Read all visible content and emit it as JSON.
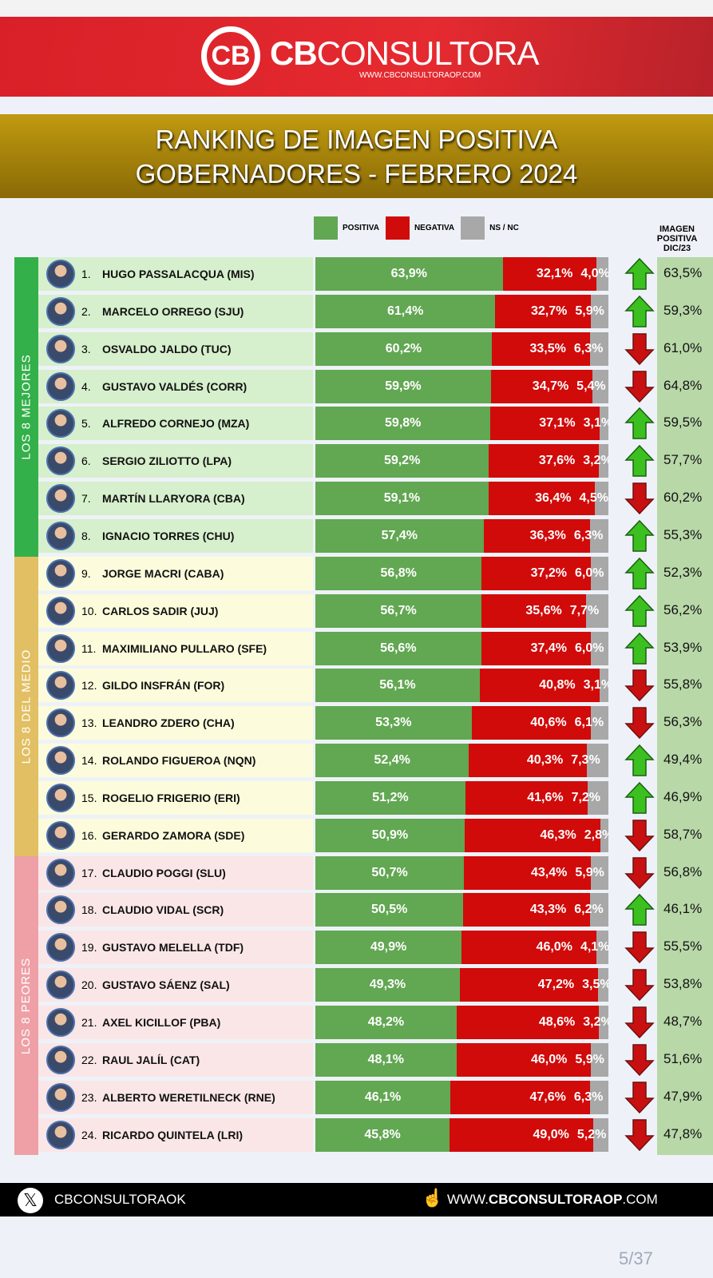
{
  "brand": {
    "logo_text": "CB",
    "name_bold": "CB",
    "name_rest": "CONSULTORA",
    "url": "WWW.CBCONSULTORAOP.COM"
  },
  "title": {
    "line1": "RANKING DE IMAGEN POSITIVA",
    "line2": "GOBERNADORES - FEBRERO 2024"
  },
  "legend": {
    "positive": "POSITIVA",
    "negative": "NEGATIVA",
    "ns": "NS / NC"
  },
  "dic_header": "IMAGEN POSITIVA DIC/23",
  "groups": {
    "top": "LOS 8 MEJORES",
    "middle": "LOS 8 DEL MEDIO",
    "bottom": "LOS 8 PEORES"
  },
  "colors": {
    "positive": "#62a752",
    "negative": "#d10a0a",
    "ns": "#a8a8a8",
    "up": "#3cc020",
    "down": "#c81010"
  },
  "chart_data": {
    "type": "bar",
    "stacked": true,
    "orientation": "horizontal",
    "title": "RANKING DE IMAGEN POSITIVA GOBERNADORES - FEBRERO 2024",
    "series_names": [
      "POSITIVA",
      "NEGATIVA",
      "NS / NC"
    ],
    "rows": [
      {
        "rank": "1.",
        "name": "HUGO PASSALACQUA (MIS)",
        "pos": "63,9%",
        "neg": "32,1%",
        "ns": "4,0%",
        "p": 63.9,
        "n": 32.1,
        "s": 4.0,
        "trend": "up",
        "dic": "63,5%"
      },
      {
        "rank": "2.",
        "name": "MARCELO ORREGO (SJU)",
        "pos": "61,4%",
        "neg": "32,7%",
        "ns": "5,9%",
        "p": 61.4,
        "n": 32.7,
        "s": 5.9,
        "trend": "up",
        "dic": "59,3%"
      },
      {
        "rank": "3.",
        "name": "OSVALDO JALDO (TUC)",
        "pos": "60,2%",
        "neg": "33,5%",
        "ns": "6,3%",
        "p": 60.2,
        "n": 33.5,
        "s": 6.3,
        "trend": "down",
        "dic": "61,0%"
      },
      {
        "rank": "4.",
        "name": "GUSTAVO VALDÉS (CORR)",
        "pos": "59,9%",
        "neg": "34,7%",
        "ns": "5,4%",
        "p": 59.9,
        "n": 34.7,
        "s": 5.4,
        "trend": "down",
        "dic": "64,8%"
      },
      {
        "rank": "5.",
        "name": "ALFREDO CORNEJO (MZA)",
        "pos": "59,8%",
        "neg": "37,1%",
        "ns": "3,1%",
        "p": 59.8,
        "n": 37.1,
        "s": 3.1,
        "trend": "up",
        "dic": "59,5%"
      },
      {
        "rank": "6.",
        "name": "SERGIO ZILIOTTO (LPA)",
        "pos": "59,2%",
        "neg": "37,6%",
        "ns": "3,2%",
        "p": 59.2,
        "n": 37.6,
        "s": 3.2,
        "trend": "up",
        "dic": "57,7%"
      },
      {
        "rank": "7.",
        "name": "MARTÍN LLARYORA (CBA)",
        "pos": "59,1%",
        "neg": "36,4%",
        "ns": "4,5%",
        "p": 59.1,
        "n": 36.4,
        "s": 4.5,
        "trend": "down",
        "dic": "60,2%"
      },
      {
        "rank": "8.",
        "name": "IGNACIO TORRES (CHU)",
        "pos": "57,4%",
        "neg": "36,3%",
        "ns": "6,3%",
        "p": 57.4,
        "n": 36.3,
        "s": 6.3,
        "trend": "up",
        "dic": "55,3%"
      },
      {
        "rank": "9.",
        "name": "JORGE MACRI (CABA)",
        "pos": "56,8%",
        "neg": "37,2%",
        "ns": "6,0%",
        "p": 56.8,
        "n": 37.2,
        "s": 6.0,
        "trend": "up",
        "dic": "52,3%"
      },
      {
        "rank": "10.",
        "name": "CARLOS SADIR (JUJ)",
        "pos": "56,7%",
        "neg": "35,6%",
        "ns": "7,7%",
        "p": 56.7,
        "n": 35.6,
        "s": 7.7,
        "trend": "up",
        "dic": "56,2%"
      },
      {
        "rank": "11.",
        "name": "MAXIMILIANO PULLARO (SFE)",
        "pos": "56,6%",
        "neg": "37,4%",
        "ns": "6,0%",
        "p": 56.6,
        "n": 37.4,
        "s": 6.0,
        "trend": "up",
        "dic": "53,9%"
      },
      {
        "rank": "12.",
        "name": "GILDO INSFRÁN (FOR)",
        "pos": "56,1%",
        "neg": "40,8%",
        "ns": "3,1%",
        "p": 56.1,
        "n": 40.8,
        "s": 3.1,
        "trend": "down",
        "dic": "55,8%"
      },
      {
        "rank": "13.",
        "name": "LEANDRO ZDERO (CHA)",
        "pos": "53,3%",
        "neg": "40,6%",
        "ns": "6,1%",
        "p": 53.3,
        "n": 40.6,
        "s": 6.1,
        "trend": "down",
        "dic": "56,3%"
      },
      {
        "rank": "14.",
        "name": "ROLANDO FIGUEROA (NQN)",
        "pos": "52,4%",
        "neg": "40,3%",
        "ns": "7,3%",
        "p": 52.4,
        "n": 40.3,
        "s": 7.3,
        "trend": "up",
        "dic": "49,4%"
      },
      {
        "rank": "15.",
        "name": "ROGELIO FRIGERIO (ERI)",
        "pos": "51,2%",
        "neg": "41,6%",
        "ns": "7,2%",
        "p": 51.2,
        "n": 41.6,
        "s": 7.2,
        "trend": "up",
        "dic": "46,9%"
      },
      {
        "rank": "16.",
        "name": "GERARDO ZAMORA (SDE)",
        "pos": "50,9%",
        "neg": "46,3%",
        "ns": "2,8%",
        "p": 50.9,
        "n": 46.3,
        "s": 2.8,
        "trend": "down",
        "dic": "58,7%"
      },
      {
        "rank": "17.",
        "name": "CLAUDIO POGGI (SLU)",
        "pos": "50,7%",
        "neg": "43,4%",
        "ns": "5,9%",
        "p": 50.7,
        "n": 43.4,
        "s": 5.9,
        "trend": "down",
        "dic": "56,8%"
      },
      {
        "rank": "18.",
        "name": "CLAUDIO VIDAL (SCR)",
        "pos": "50,5%",
        "neg": "43,3%",
        "ns": "6,2%",
        "p": 50.5,
        "n": 43.3,
        "s": 6.2,
        "trend": "up",
        "dic": "46,1%"
      },
      {
        "rank": "19.",
        "name": "GUSTAVO MELELLA (TDF)",
        "pos": "49,9%",
        "neg": "46,0%",
        "ns": "4,1%",
        "p": 49.9,
        "n": 46.0,
        "s": 4.1,
        "trend": "down",
        "dic": "55,5%"
      },
      {
        "rank": "20.",
        "name": "GUSTAVO SÁENZ (SAL)",
        "pos": "49,3%",
        "neg": "47,2%",
        "ns": "3,5%",
        "p": 49.3,
        "n": 47.2,
        "s": 3.5,
        "trend": "down",
        "dic": "53,8%"
      },
      {
        "rank": "21.",
        "name": "AXEL KICILLOF (PBA)",
        "pos": "48,2%",
        "neg": "48,6%",
        "ns": "3,2%",
        "p": 48.2,
        "n": 48.6,
        "s": 3.2,
        "trend": "down",
        "dic": "48,7%"
      },
      {
        "rank": "22.",
        "name": "RAUL JALÍL (CAT)",
        "pos": "48,1%",
        "neg": "46,0%",
        "ns": "5,9%",
        "p": 48.1,
        "n": 46.0,
        "s": 5.9,
        "trend": "down",
        "dic": "51,6%"
      },
      {
        "rank": "23.",
        "name": "ALBERTO WERETILNECK (RNE)",
        "pos": "46,1%",
        "neg": "47,6%",
        "ns": "6,3%",
        "p": 46.1,
        "n": 47.6,
        "s": 6.3,
        "trend": "down",
        "dic": "47,9%"
      },
      {
        "rank": "24.",
        "name": "RICARDO QUINTELA (LRI)",
        "pos": "45,8%",
        "neg": "49,0%",
        "ns": "5,2%",
        "p": 45.8,
        "n": 49.0,
        "s": 5.2,
        "trend": "down",
        "dic": "47,8%"
      }
    ]
  },
  "footer": {
    "x_handle": "CBCONSULTORAOK",
    "url_pre": "WWW.",
    "url_bold": "CBCONSULTORAOP",
    "url_post": ".COM"
  },
  "page_indicator": "5/37"
}
